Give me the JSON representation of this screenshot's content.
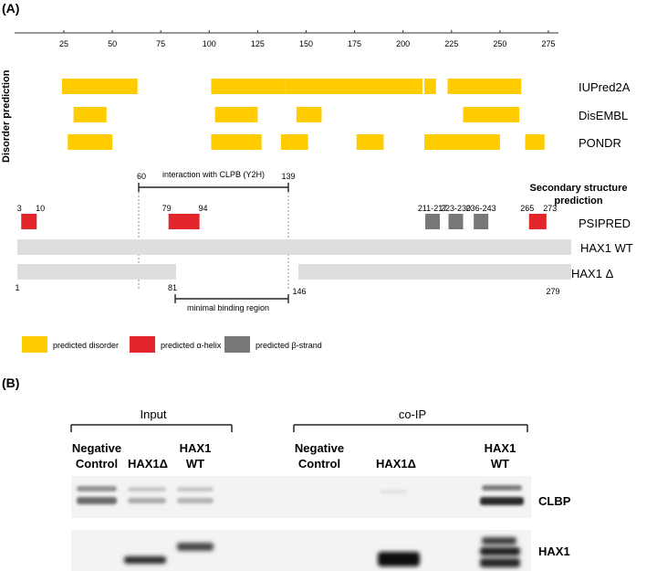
{
  "panel_a": {
    "label": "(A)",
    "axis_ticks": [
      "25",
      "50",
      "75",
      "100",
      "125",
      "150",
      "175",
      "200",
      "225",
      "250",
      "275"
    ],
    "side_title": "Disorder prediction",
    "tracks": [
      {
        "name": "IUPred2A",
        "segments": [
          [
            24,
            63
          ],
          [
            101,
            139
          ],
          [
            139,
            210
          ],
          [
            211,
            217
          ],
          [
            223,
            261
          ]
        ]
      },
      {
        "name": "DisEMBL",
        "segments": [
          [
            30,
            47
          ],
          [
            103,
            125
          ],
          [
            145,
            158
          ],
          [
            231,
            260
          ]
        ]
      },
      {
        "name": "PONDR",
        "segments": [
          [
            27,
            50
          ],
          [
            101,
            127
          ],
          [
            137,
            151
          ],
          [
            176,
            190
          ],
          [
            211,
            250
          ],
          [
            263,
            273
          ]
        ]
      }
    ],
    "clpb_interaction": {
      "label": "interaction with CLPB (Y2H)",
      "start": "60",
      "end": "139"
    },
    "secondary_title_line1": "Secondary structure",
    "secondary_title_line2": "prediction",
    "psipred": {
      "name": "PSIPRED",
      "helices": [
        {
          "start": 3,
          "end": 10,
          "start_label": "3",
          "end_label": "10"
        },
        {
          "start": 79,
          "end": 94,
          "start_label": "79",
          "end_label": "94"
        },
        {
          "start": 265,
          "end": 273,
          "start_label": "265",
          "end_label": "273"
        }
      ],
      "strands": [
        {
          "start": 211,
          "end": 217,
          "label": "211-217"
        },
        {
          "start": 223,
          "end": 230,
          "label": "223-230"
        },
        {
          "start": 236,
          "end": 243,
          "label": "236-243"
        }
      ]
    },
    "hax1_wt": {
      "name": "HAX1 WT",
      "start": 1,
      "end": 279
    },
    "hax1_delta": {
      "name": "HAX1 Δ",
      "segments": [
        [
          1,
          81
        ],
        [
          146,
          279
        ]
      ]
    },
    "position_labels": {
      "start": "1",
      "deletion_start": "81",
      "deletion_end": "146",
      "end": "279"
    },
    "minimal_binding": {
      "label": "minimal binding region",
      "start": 81,
      "end": 139
    },
    "legend": [
      {
        "label": "predicted disorder",
        "color": "#FFCC00"
      },
      {
        "label": "predicted α-helix",
        "color": "#E3262B"
      },
      {
        "label": "predicted β-strand",
        "color": "#777777"
      }
    ],
    "colors": {
      "disorder": "#FFCC00",
      "helix": "#E3262B",
      "strand": "#777777",
      "protein": "#DEDEDE"
    }
  },
  "panel_b": {
    "label": "(B)",
    "groups": [
      {
        "title": "Input",
        "lanes": [
          "Negative\nControl",
          "HAX1Δ",
          "HAX1\nWT"
        ]
      },
      {
        "title": "co-IP",
        "lanes": [
          "Negative\nControl",
          "HAX1Δ",
          "HAX1\nWT"
        ]
      }
    ],
    "blots": [
      {
        "name": "CLBP"
      },
      {
        "name": "HAX1"
      }
    ]
  }
}
